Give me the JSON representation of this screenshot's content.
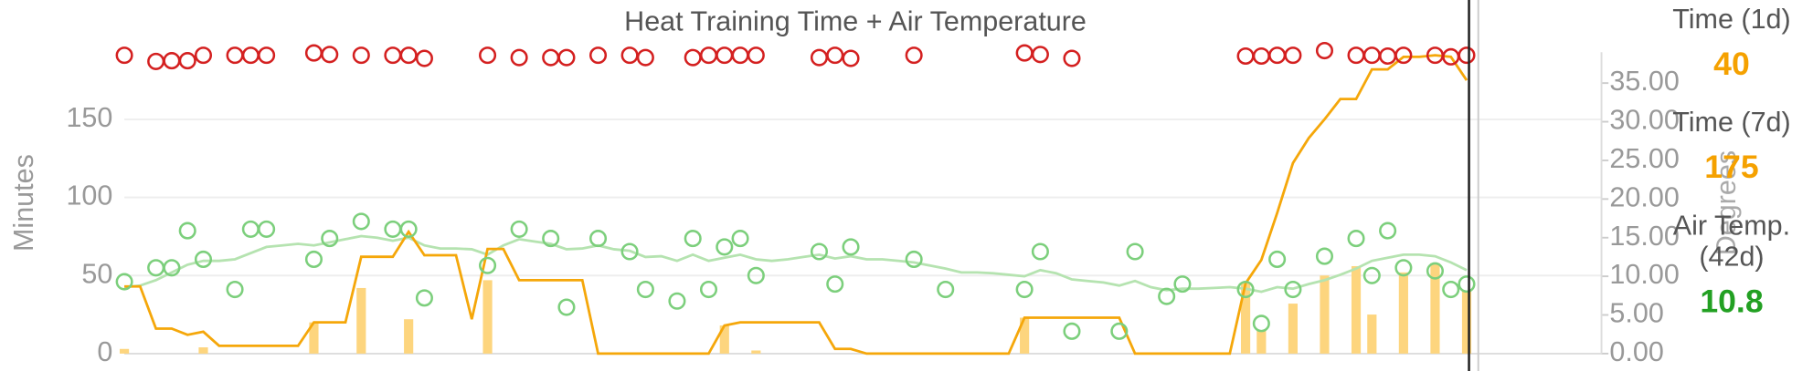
{
  "chart_data": {
    "type": "combo",
    "title": "Heat Training Time + Air Temperature",
    "ylabel": "Minutes",
    "y2label": "Degrees",
    "ylim": [
      0,
      193
    ],
    "yticks": [
      0,
      50,
      100,
      150
    ],
    "y2lim": [
      0,
      39
    ],
    "y2ticks": [
      {
        "value": 0,
        "label": "0.00"
      },
      {
        "value": 5,
        "label": "5.00"
      },
      {
        "value": 10,
        "label": "10.00"
      },
      {
        "value": 15,
        "label": "15.00"
      },
      {
        "value": 20,
        "label": "20.00"
      },
      {
        "value": 25,
        "label": "25.00"
      },
      {
        "value": 30,
        "label": "30.00"
      },
      {
        "value": 35,
        "label": "35.00"
      }
    ],
    "grid": true,
    "categories": [
      null,
      null,
      null,
      null,
      null,
      null,
      null,
      null,
      null,
      null,
      null,
      null,
      null,
      null,
      null,
      null,
      null,
      null,
      null,
      null,
      null,
      null,
      null,
      null,
      null,
      null,
      null,
      null,
      null,
      null,
      null,
      null,
      null,
      null,
      null,
      null,
      null,
      null,
      null,
      null,
      null,
      null,
      null,
      null,
      null,
      null,
      null,
      null,
      null,
      null,
      null,
      null,
      null,
      null,
      null,
      null,
      null,
      null,
      null,
      null,
      null,
      null,
      null,
      null,
      null,
      null,
      null,
      null,
      null,
      null,
      null,
      null,
      null,
      null,
      null,
      null,
      null,
      null,
      null,
      null,
      null,
      null,
      null,
      null,
      null,
      null
    ],
    "series": [
      {
        "type": "bar",
        "axis": "y",
        "color": "#fdd57e",
        "values": [
          3,
          null,
          null,
          null,
          null,
          4,
          null,
          null,
          null,
          null,
          null,
          null,
          20,
          null,
          null,
          42,
          null,
          null,
          22,
          null,
          null,
          null,
          null,
          47,
          null,
          null,
          null,
          null,
          null,
          null,
          null,
          null,
          null,
          null,
          null,
          null,
          null,
          null,
          18,
          null,
          2,
          null,
          null,
          null,
          null,
          null,
          null,
          null,
          null,
          null,
          null,
          null,
          null,
          null,
          null,
          null,
          null,
          23,
          null,
          null,
          null,
          null,
          null,
          null,
          null,
          null,
          null,
          null,
          null,
          null,
          null,
          45,
          15,
          null,
          32,
          null,
          50,
          null,
          56,
          25,
          null,
          52,
          null,
          58,
          null,
          40
        ]
      },
      {
        "type": "line",
        "axis": "y2",
        "color": "#b5e3b0",
        "values": [
          8.6,
          8.8,
          9.5,
          10.5,
          11.5,
          12.0,
          12.0,
          12.2,
          13.0,
          13.8,
          14.0,
          14.2,
          14.0,
          14.4,
          14.8,
          15.2,
          15.0,
          14.6,
          15.0,
          14.0,
          13.6,
          13.6,
          13.5,
          12.8,
          14.0,
          14.8,
          14.5,
          14.2,
          13.5,
          13.6,
          14.0,
          13.5,
          13.3,
          12.5,
          12.6,
          12.0,
          12.8,
          12.0,
          12.4,
          12.8,
          12.2,
          12.0,
          12.2,
          12.5,
          12.8,
          12.3,
          12.6,
          12.2,
          12.2,
          12.0,
          11.8,
          11.4,
          11.0,
          10.5,
          10.5,
          10.4,
          10.2,
          10.0,
          10.8,
          10.4,
          9.6,
          9.4,
          9.2,
          8.8,
          9.4,
          8.6,
          8.2,
          8.4,
          8.4,
          8.5,
          8.6,
          8.4,
          8.0,
          8.6,
          8.4,
          9.0,
          9.5,
          10.2,
          11.0,
          12.0,
          12.4,
          12.8,
          12.8,
          12.6,
          11.8,
          10.8
        ]
      },
      {
        "type": "line",
        "axis": "y",
        "color": "#f5a70a",
        "values": [
          43,
          43,
          16,
          16,
          12,
          14,
          5,
          5,
          5,
          5,
          5,
          5,
          20,
          20,
          20,
          62,
          62,
          62,
          78,
          63,
          63,
          63,
          22,
          67,
          67,
          47,
          47,
          47,
          47,
          47,
          0,
          0,
          0,
          0,
          0,
          0,
          0,
          0,
          18,
          20,
          20,
          20,
          20,
          20,
          20,
          3,
          3,
          0,
          0,
          0,
          0,
          0,
          0,
          0,
          0,
          0,
          0,
          23,
          23,
          23,
          23,
          23,
          23,
          23,
          0,
          0,
          0,
          0,
          0,
          0,
          0,
          45,
          60,
          90,
          122,
          138,
          150,
          163,
          163,
          182,
          182,
          190,
          190,
          191,
          190,
          175
        ]
      },
      {
        "type": "scatter",
        "axis": "y2",
        "color": "#7ccf7c",
        "values": [
          9.3,
          null,
          11.1,
          11.1,
          15.9,
          12.2,
          null,
          8.3,
          16.1,
          16.1,
          null,
          null,
          12.2,
          14.9,
          null,
          17.1,
          null,
          16.1,
          16.1,
          7.2,
          null,
          null,
          null,
          11.4,
          null,
          16.1,
          null,
          14.9,
          6.0,
          null,
          14.9,
          null,
          13.2,
          8.3,
          null,
          6.8,
          14.9,
          8.3,
          13.8,
          14.9,
          10.1,
          null,
          null,
          null,
          13.2,
          9.0,
          13.8,
          null,
          null,
          null,
          12.2,
          null,
          8.3,
          null,
          null,
          null,
          null,
          8.3,
          13.2,
          null,
          2.9,
          null,
          null,
          2.9,
          13.2,
          null,
          7.4,
          9.0,
          null,
          null,
          null,
          8.3,
          3.9,
          12.2,
          8.3,
          null,
          12.6,
          null,
          14.9,
          10.1,
          15.9,
          11.1,
          null,
          10.7,
          8.3,
          9.0
        ]
      },
      {
        "type": "scatter",
        "axis": "y2",
        "color": "#d42020",
        "values": [
          38.6,
          null,
          37.8,
          37.9,
          37.9,
          38.6,
          null,
          38.6,
          38.6,
          38.6,
          null,
          null,
          38.9,
          38.7,
          null,
          38.6,
          null,
          38.6,
          38.6,
          38.2,
          null,
          null,
          null,
          38.6,
          null,
          38.3,
          null,
          38.3,
          38.3,
          null,
          38.6,
          null,
          38.6,
          38.3,
          null,
          null,
          38.3,
          38.6,
          38.6,
          38.6,
          38.6,
          null,
          null,
          null,
          38.3,
          38.6,
          38.2,
          null,
          null,
          null,
          38.6,
          null,
          null,
          null,
          null,
          null,
          null,
          38.9,
          38.7,
          null,
          38.2,
          null,
          null,
          null,
          null,
          null,
          null,
          null,
          null,
          null,
          null,
          38.5,
          38.5,
          38.6,
          38.6,
          null,
          39.2,
          null,
          38.6,
          38.6,
          38.5,
          38.6,
          null,
          38.6,
          38.4,
          38.6
        ]
      }
    ]
  },
  "readout": [
    {
      "label": "Time (1d)",
      "value": 40,
      "color": "#f5a100"
    },
    {
      "label": "Time (7d)",
      "value": 175,
      "color": "#f5a100"
    },
    {
      "label": "Air Temp.",
      "sublabel": "(42d)",
      "value": 10.8,
      "color": "#22a022"
    }
  ]
}
